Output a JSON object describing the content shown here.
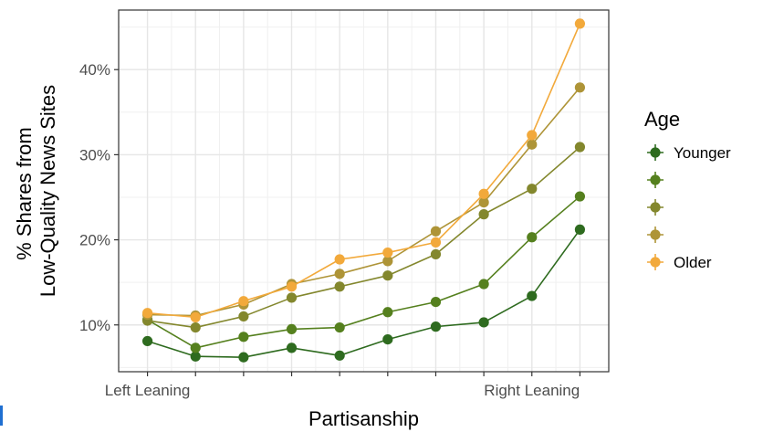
{
  "chart_data": {
    "type": "line",
    "title": "",
    "xlabel": "Partisanship",
    "ylabel": "% Shares from Low-Quality News Sites",
    "ylabel_lines": [
      "% Shares from",
      "Low-Quality News Sites"
    ],
    "x": [
      1,
      2,
      3,
      4,
      5,
      6,
      7,
      8,
      9,
      10
    ],
    "xlim": [
      0.4,
      10.6
    ],
    "x_tick_labels": [
      "Left Leaning",
      "",
      "",
      "",
      "",
      "",
      "",
      "",
      "Right Leaning",
      ""
    ],
    "ylim": [
      4.5,
      47
    ],
    "y_ticks": [
      10,
      20,
      30,
      40
    ],
    "y_tick_labels": [
      "10%",
      "20%",
      "30%",
      "40%"
    ],
    "grid": true,
    "legend": {
      "title": "Age",
      "position": "right",
      "labels": [
        "Younger",
        "",
        "",
        "",
        "Older"
      ]
    },
    "series": [
      {
        "name": "Younger",
        "color": "#2e6b1f",
        "values": [
          8.1,
          6.3,
          6.2,
          7.3,
          6.4,
          8.3,
          9.8,
          10.3,
          13.4,
          21.2
        ]
      },
      {
        "color": "#55801e",
        "values": [
          10.6,
          7.3,
          8.6,
          9.5,
          9.7,
          11.5,
          12.7,
          14.8,
          20.3,
          25.1
        ]
      },
      {
        "color": "#83872d",
        "values": [
          10.5,
          9.7,
          11.0,
          13.2,
          14.5,
          15.8,
          18.3,
          23.0,
          26.0,
          30.9
        ]
      },
      {
        "color": "#ae9437",
        "values": [
          11.2,
          11.1,
          12.4,
          14.8,
          16.0,
          17.5,
          21.0,
          24.4,
          31.2,
          37.9
        ]
      },
      {
        "name": "Older",
        "color": "#f2a93b",
        "values": [
          11.4,
          10.9,
          12.8,
          14.5,
          17.7,
          18.5,
          19.7,
          25.4,
          32.3,
          45.4
        ]
      }
    ]
  }
}
